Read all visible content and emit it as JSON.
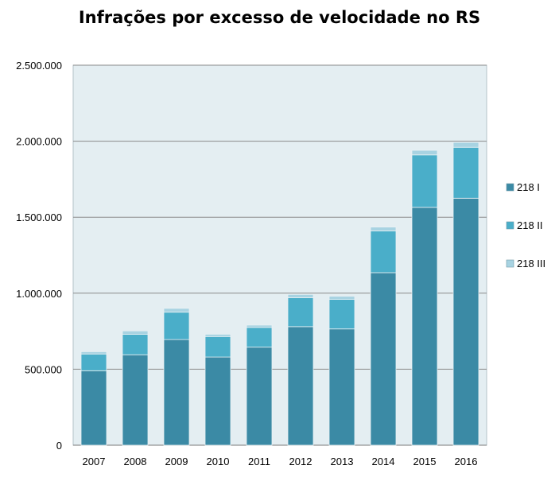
{
  "chart_data": {
    "type": "bar",
    "stacked": true,
    "title": "Infrações por excesso de velocidade no RS",
    "xlabel": "",
    "ylabel": "",
    "categories": [
      "2007",
      "2008",
      "2009",
      "2010",
      "2011",
      "2012",
      "2013",
      "2014",
      "2015",
      "2016"
    ],
    "series": [
      {
        "name": "218 I",
        "color": "#3b8aa5",
        "values": [
          490000,
          595000,
          695000,
          580000,
          645000,
          780000,
          765000,
          1135000,
          1565000,
          1625000
        ]
      },
      {
        "name": "218 II",
        "color": "#4aaec9",
        "values": [
          110000,
          135000,
          180000,
          135000,
          130000,
          190000,
          195000,
          275000,
          345000,
          335000
        ]
      },
      {
        "name": "218 III",
        "color": "#a8d3e2",
        "values": [
          15000,
          22000,
          25000,
          15000,
          15000,
          22000,
          20000,
          25000,
          30000,
          32000
        ]
      }
    ],
    "ylim": [
      0,
      2500000
    ],
    "yticks": [
      0,
      500000,
      1000000,
      1500000,
      2000000,
      2500000
    ],
    "ytick_labels": [
      "0",
      "500.000",
      "1.000.000",
      "1.500.000",
      "2.000.000",
      "2.500.000"
    ],
    "grid": true,
    "plot_background": "#e4eef2",
    "legend_position": "right"
  }
}
